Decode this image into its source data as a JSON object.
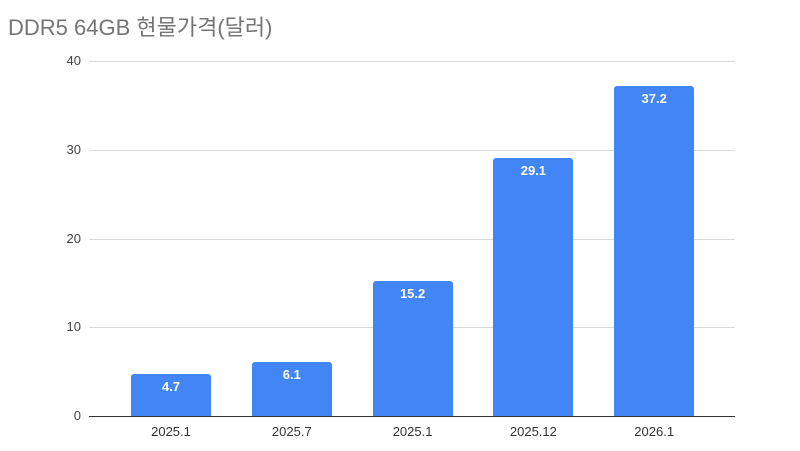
{
  "chart_data": {
    "type": "bar",
    "title": "DDR5 64GB 현물가격(달러)",
    "categories": [
      "2025.1",
      "2025.7",
      "2025.1",
      "2025.12",
      "2026.1"
    ],
    "values": [
      4.7,
      6.1,
      15.2,
      29.1,
      37.2
    ],
    "value_labels": [
      "4.7",
      "6.1",
      "15.2",
      "29.1",
      "37.2"
    ],
    "xlabel": "",
    "ylabel": "",
    "ylim": [
      0,
      40
    ],
    "yticks": [
      "0",
      "10",
      "20",
      "30",
      "40"
    ],
    "grid": true,
    "legend": "none",
    "bar_color": "#4285f4"
  }
}
